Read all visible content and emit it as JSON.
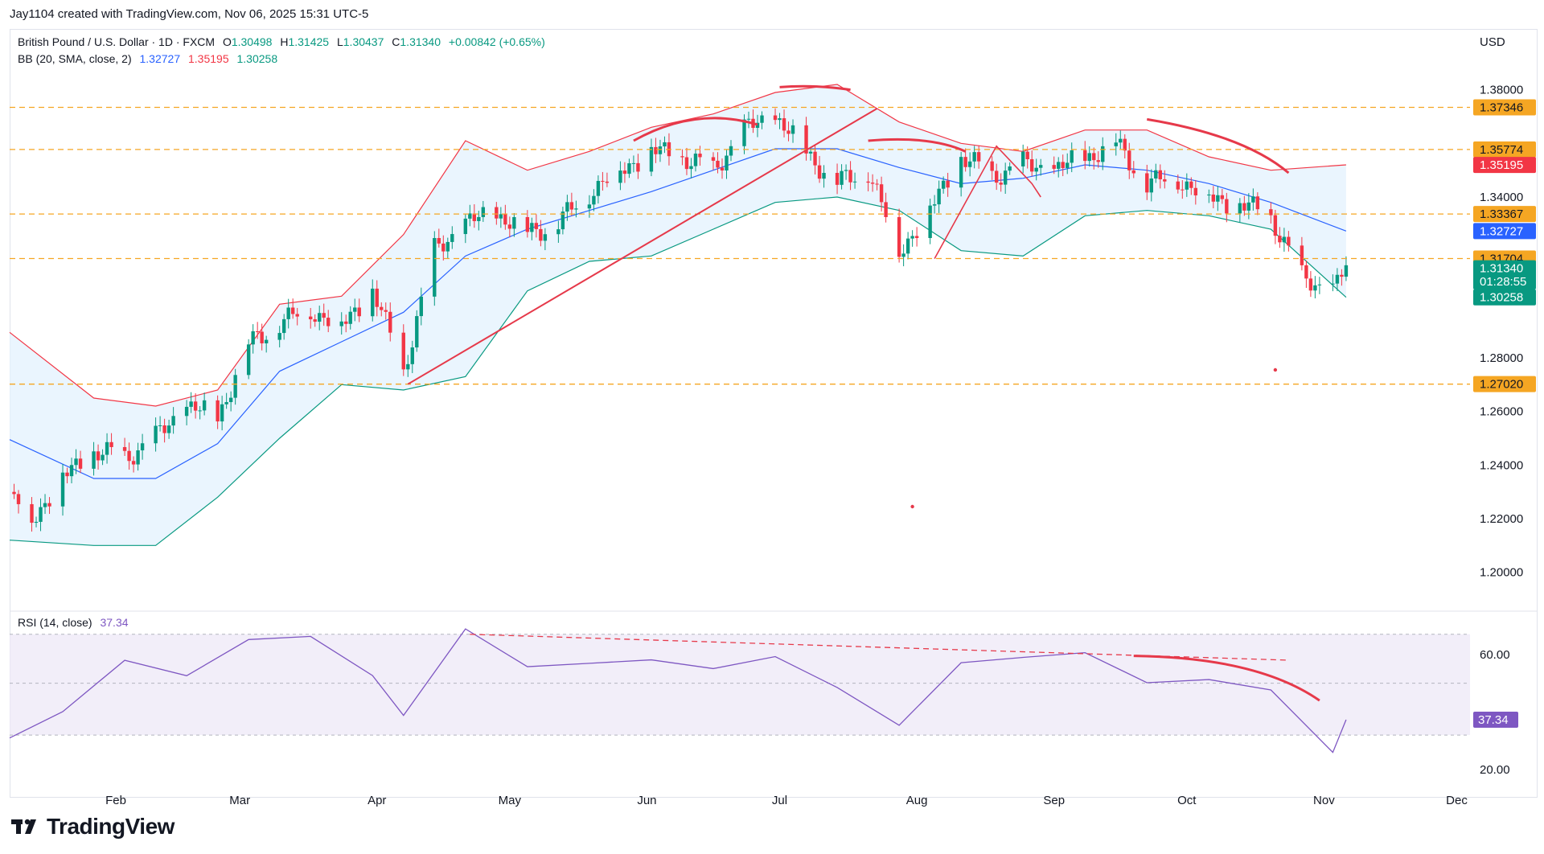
{
  "header": {
    "creator_line": "Jay1104 created with TradingView.com, Nov 06, 2025 15:31 UTC-5",
    "currency": "USD"
  },
  "legend": {
    "symbol": "British Pound / U.S. Dollar · 1D · FXCM",
    "open_key": "O",
    "open": "1.30498",
    "high_key": "H",
    "high": "1.31425",
    "low_key": "L",
    "low": "1.30437",
    "close_key": "C",
    "close": "1.31340",
    "change": "+0.00842 (+0.65%)",
    "bb_label": "BB (20, SMA, close, 2)",
    "bb_basis": "1.32727",
    "bb_upper": "1.35195",
    "bb_lower": "1.30258",
    "rsi_label": "RSI (14, close)",
    "rsi_value": "37.34"
  },
  "footer": {
    "brand": "TradingView"
  },
  "colors": {
    "up": "#089981",
    "down": "#f23645",
    "basis": "#2962ff",
    "band_fill": "#e3f2fd",
    "rsi_line": "#7e57c2",
    "rsi_band": "#ede7f6",
    "hline": "#f5a623",
    "drawing": "#e6394a"
  },
  "chart_data": {
    "type": "candlestick",
    "title": "British Pound / U.S. Dollar · 1D · FXCM",
    "ylim": [
      1.19,
      1.385
    ],
    "y_ticks": [
      "1.38000",
      "1.34000",
      "1.28000",
      "1.26000",
      "1.24000",
      "1.22000",
      "1.20000"
    ],
    "x_months": [
      "Feb",
      "Mar",
      "Apr",
      "May",
      "Jun",
      "Jul",
      "Aug",
      "Sep",
      "Oct",
      "Nov",
      "Dec"
    ],
    "x_start": "2025-01-08",
    "x_end": "2025-12-04",
    "horizontal_levels": [
      {
        "value": 1.37346,
        "label": "1.37346"
      },
      {
        "value": 1.35774,
        "label": "1.35774"
      },
      {
        "value": 1.33367,
        "label": "1.33367"
      },
      {
        "value": 1.31704,
        "label": "1.31704"
      },
      {
        "value": 1.2702,
        "label": "1.27020"
      }
    ],
    "price_badges": [
      {
        "label": "1.35195",
        "value": 1.35195,
        "color": "#f23645"
      },
      {
        "label": "1.32727",
        "value": 1.32727,
        "color": "#2962ff"
      },
      {
        "label": "1.31340",
        "value": 1.3134,
        "color": "#089981"
      },
      {
        "label": "01:28:55",
        "value": 1.3085,
        "color": "#089981"
      },
      {
        "label": "1.30258",
        "value": 1.30258,
        "color": "#089981"
      }
    ],
    "close_series": {
      "dates": [
        "2025-01-08",
        "2025-01-13",
        "2025-01-20",
        "2025-01-27",
        "2025-02-03",
        "2025-02-10",
        "2025-02-17",
        "2025-02-24",
        "2025-03-03",
        "2025-03-10",
        "2025-03-17",
        "2025-03-24",
        "2025-03-31",
        "2025-04-07",
        "2025-04-14",
        "2025-04-21",
        "2025-04-28",
        "2025-05-05",
        "2025-05-12",
        "2025-05-19",
        "2025-05-26",
        "2025-06-02",
        "2025-06-09",
        "2025-06-16",
        "2025-06-23",
        "2025-06-30",
        "2025-07-07",
        "2025-07-14",
        "2025-07-21",
        "2025-07-28",
        "2025-08-04",
        "2025-08-11",
        "2025-08-18",
        "2025-08-25",
        "2025-09-01",
        "2025-09-08",
        "2025-09-15",
        "2025-09-22",
        "2025-09-29",
        "2025-10-06",
        "2025-10-13",
        "2025-10-20",
        "2025-10-27",
        "2025-11-03",
        "2025-11-06"
      ],
      "values": [
        1.23,
        1.22,
        1.235,
        1.245,
        1.243,
        1.25,
        1.262,
        1.258,
        1.285,
        1.293,
        1.298,
        1.292,
        1.305,
        1.275,
        1.32,
        1.33,
        1.334,
        1.327,
        1.33,
        1.342,
        1.35,
        1.357,
        1.355,
        1.35,
        1.365,
        1.37,
        1.357,
        1.345,
        1.35,
        1.32,
        1.335,
        1.355,
        1.348,
        1.352,
        1.35,
        1.355,
        1.36,
        1.345,
        1.347,
        1.34,
        1.337,
        1.333,
        1.31,
        1.305,
        1.3134
      ]
    },
    "bb_upper": {
      "dates": [
        "2025-01-08",
        "2025-01-27",
        "2025-02-10",
        "2025-02-24",
        "2025-03-10",
        "2025-03-24",
        "2025-04-07",
        "2025-04-21",
        "2025-05-05",
        "2025-05-19",
        "2025-06-02",
        "2025-06-16",
        "2025-06-30",
        "2025-07-14",
        "2025-07-28",
        "2025-08-11",
        "2025-08-25",
        "2025-09-08",
        "2025-09-22",
        "2025-10-06",
        "2025-10-20",
        "2025-11-06"
      ],
      "values": [
        1.2895,
        1.265,
        1.262,
        1.268,
        1.3,
        1.303,
        1.326,
        1.361,
        1.35,
        1.357,
        1.366,
        1.371,
        1.379,
        1.382,
        1.368,
        1.36,
        1.357,
        1.365,
        1.365,
        1.355,
        1.35,
        1.352
      ]
    },
    "bb_basis": {
      "dates": [
        "2025-01-08",
        "2025-01-27",
        "2025-02-10",
        "2025-02-24",
        "2025-03-10",
        "2025-03-24",
        "2025-04-07",
        "2025-04-21",
        "2025-05-05",
        "2025-05-19",
        "2025-06-02",
        "2025-06-16",
        "2025-06-30",
        "2025-07-14",
        "2025-07-28",
        "2025-08-11",
        "2025-08-25",
        "2025-09-08",
        "2025-09-22",
        "2025-10-06",
        "2025-10-20",
        "2025-11-06"
      ],
      "values": [
        1.2495,
        1.235,
        1.235,
        1.248,
        1.275,
        1.286,
        1.297,
        1.318,
        1.328,
        1.335,
        1.342,
        1.35,
        1.358,
        1.358,
        1.351,
        1.345,
        1.347,
        1.352,
        1.35,
        1.345,
        1.338,
        1.3273
      ]
    },
    "bb_lower": {
      "dates": [
        "2025-01-08",
        "2025-01-27",
        "2025-02-10",
        "2025-02-24",
        "2025-03-10",
        "2025-03-24",
        "2025-04-07",
        "2025-04-21",
        "2025-05-05",
        "2025-05-19",
        "2025-06-02",
        "2025-06-16",
        "2025-06-30",
        "2025-07-14",
        "2025-07-28",
        "2025-08-11",
        "2025-08-25",
        "2025-09-08",
        "2025-09-22",
        "2025-10-06",
        "2025-10-20",
        "2025-11-06"
      ],
      "values": [
        1.212,
        1.21,
        1.21,
        1.228,
        1.25,
        1.27,
        1.268,
        1.273,
        1.305,
        1.316,
        1.318,
        1.328,
        1.338,
        1.34,
        1.335,
        1.32,
        1.318,
        1.333,
        1.335,
        1.333,
        1.328,
        1.3026
      ]
    },
    "rsi": {
      "ylim": [
        15,
        70
      ],
      "y_ticks": [
        "60.00",
        "20.00"
      ],
      "value_badge": "37.34",
      "dates": [
        "2025-01-08",
        "2025-01-20",
        "2025-02-03",
        "2025-02-17",
        "2025-03-03",
        "2025-03-17",
        "2025-03-31",
        "2025-04-07",
        "2025-04-21",
        "2025-05-05",
        "2025-05-19",
        "2025-06-02",
        "2025-06-16",
        "2025-06-30",
        "2025-07-14",
        "2025-07-28",
        "2025-08-11",
        "2025-08-25",
        "2025-09-08",
        "2025-09-22",
        "2025-10-06",
        "2025-10-20",
        "2025-11-03",
        "2025-11-06"
      ],
      "values": [
        31,
        38,
        55,
        50,
        64,
        67,
        55,
        36,
        66,
        54,
        57,
        60,
        58,
        62,
        50,
        35,
        55,
        56,
        58,
        49,
        52,
        50,
        29,
        37.34
      ]
    }
  }
}
